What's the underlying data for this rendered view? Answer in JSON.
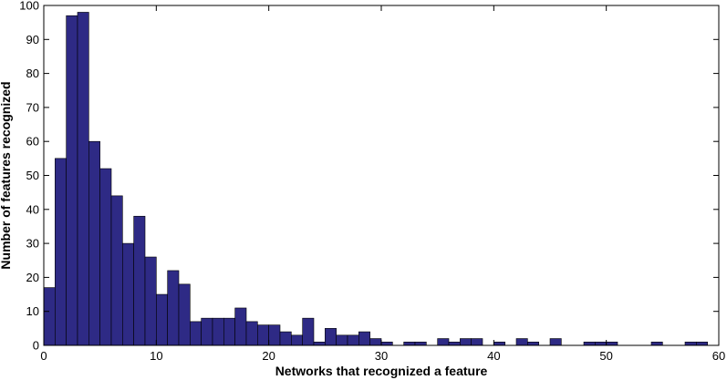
{
  "chart_data": {
    "type": "bar",
    "title": "",
    "xlabel": "Networks that recognized a feature",
    "ylabel": "Number of features recognized",
    "xlim": [
      0,
      60
    ],
    "ylim": [
      0,
      100
    ],
    "xticks": [
      0,
      10,
      20,
      30,
      40,
      50,
      60
    ],
    "yticks": [
      0,
      10,
      20,
      30,
      40,
      50,
      60,
      70,
      80,
      90,
      100
    ],
    "grid": false,
    "bar_color": "#2e2a85",
    "bin_width": 1,
    "bins": [
      {
        "x": 0,
        "value": 17
      },
      {
        "x": 1,
        "value": 55
      },
      {
        "x": 2,
        "value": 97
      },
      {
        "x": 3,
        "value": 98
      },
      {
        "x": 4,
        "value": 60
      },
      {
        "x": 5,
        "value": 52
      },
      {
        "x": 6,
        "value": 44
      },
      {
        "x": 7,
        "value": 30
      },
      {
        "x": 8,
        "value": 38
      },
      {
        "x": 9,
        "value": 26
      },
      {
        "x": 10,
        "value": 15
      },
      {
        "x": 11,
        "value": 22
      },
      {
        "x": 12,
        "value": 18
      },
      {
        "x": 13,
        "value": 7
      },
      {
        "x": 14,
        "value": 8
      },
      {
        "x": 15,
        "value": 8
      },
      {
        "x": 16,
        "value": 8
      },
      {
        "x": 17,
        "value": 11
      },
      {
        "x": 18,
        "value": 7
      },
      {
        "x": 19,
        "value": 6
      },
      {
        "x": 20,
        "value": 6
      },
      {
        "x": 21,
        "value": 4
      },
      {
        "x": 22,
        "value": 3
      },
      {
        "x": 23,
        "value": 8
      },
      {
        "x": 24,
        "value": 1
      },
      {
        "x": 25,
        "value": 5
      },
      {
        "x": 26,
        "value": 3
      },
      {
        "x": 27,
        "value": 3
      },
      {
        "x": 28,
        "value": 4
      },
      {
        "x": 29,
        "value": 2
      },
      {
        "x": 30,
        "value": 1
      },
      {
        "x": 31,
        "value": 0
      },
      {
        "x": 32,
        "value": 1
      },
      {
        "x": 33,
        "value": 1
      },
      {
        "x": 34,
        "value": 0
      },
      {
        "x": 35,
        "value": 2
      },
      {
        "x": 36,
        "value": 1
      },
      {
        "x": 37,
        "value": 2
      },
      {
        "x": 38,
        "value": 2
      },
      {
        "x": 39,
        "value": 0
      },
      {
        "x": 40,
        "value": 1
      },
      {
        "x": 41,
        "value": 0
      },
      {
        "x": 42,
        "value": 2
      },
      {
        "x": 43,
        "value": 1
      },
      {
        "x": 44,
        "value": 0
      },
      {
        "x": 45,
        "value": 2
      },
      {
        "x": 46,
        "value": 0
      },
      {
        "x": 47,
        "value": 0
      },
      {
        "x": 48,
        "value": 1
      },
      {
        "x": 49,
        "value": 1
      },
      {
        "x": 50,
        "value": 1
      },
      {
        "x": 51,
        "value": 0
      },
      {
        "x": 52,
        "value": 0
      },
      {
        "x": 53,
        "value": 0
      },
      {
        "x": 54,
        "value": 1
      },
      {
        "x": 55,
        "value": 0
      },
      {
        "x": 56,
        "value": 0
      },
      {
        "x": 57,
        "value": 1
      },
      {
        "x": 58,
        "value": 1
      }
    ]
  }
}
